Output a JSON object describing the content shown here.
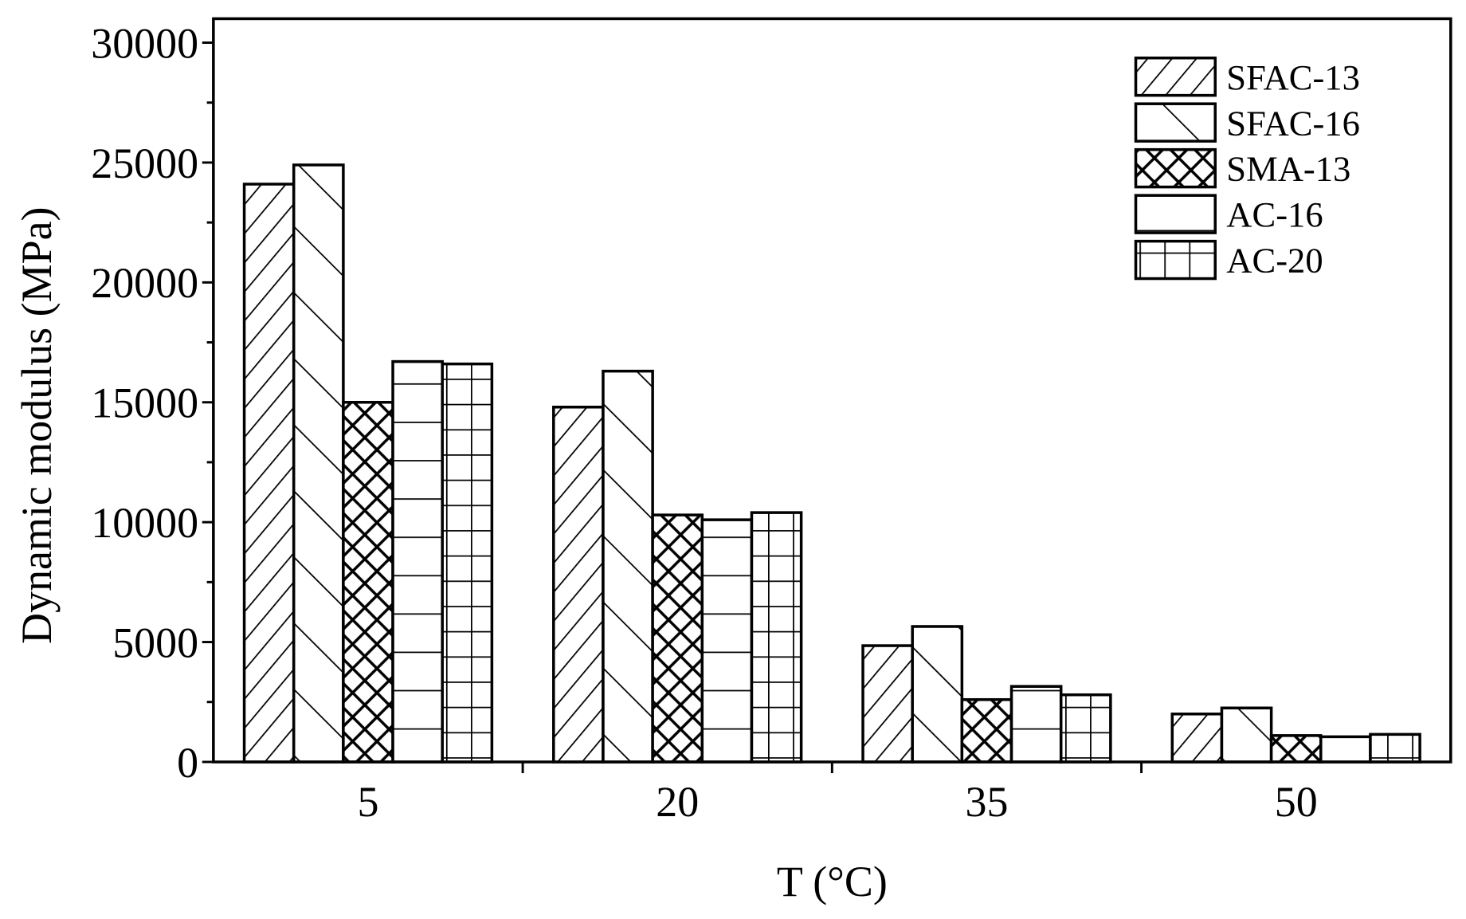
{
  "chart_data": {
    "type": "bar",
    "title": "",
    "xlabel": "T (°C)",
    "ylabel": "Dynamic modulus (MPa)",
    "categories": [
      "5",
      "20",
      "35",
      "50"
    ],
    "ylim": [
      0,
      31000
    ],
    "yticks": [
      0,
      5000,
      10000,
      15000,
      20000,
      25000,
      30000
    ],
    "grid": false,
    "legend": "top-right",
    "series": [
      {
        "name": "SFAC-13",
        "values": [
          24100,
          14800,
          4850,
          2000
        ]
      },
      {
        "name": "SFAC-16",
        "values": [
          24900,
          16300,
          5650,
          2250
        ]
      },
      {
        "name": "SMA-13",
        "values": [
          15000,
          10300,
          2600,
          1100
        ]
      },
      {
        "name": "AC-16",
        "values": [
          16700,
          10100,
          3150,
          1050
        ]
      },
      {
        "name": "AC-20",
        "values": [
          16600,
          10400,
          2800,
          1150
        ]
      }
    ]
  }
}
